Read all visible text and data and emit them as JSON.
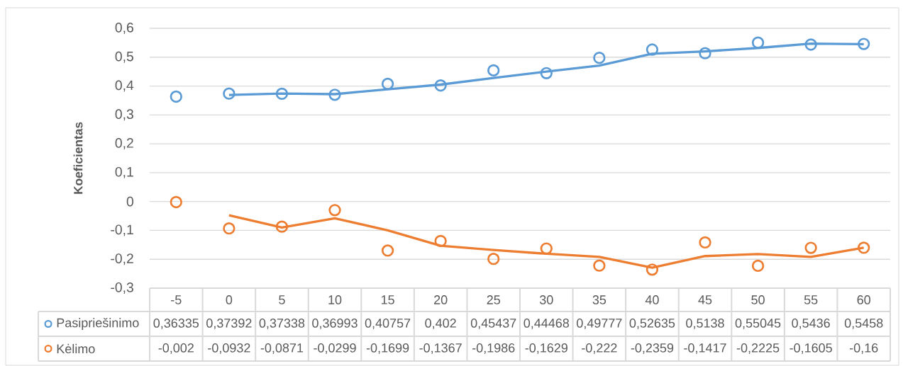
{
  "chart_data": {
    "type": "scatter",
    "ylabel": "Koeficientas",
    "categories": [
      "-5",
      "0",
      "5",
      "10",
      "15",
      "20",
      "25",
      "30",
      "35",
      "40",
      "45",
      "50",
      "55",
      "60"
    ],
    "series": [
      {
        "name": "Pasipriešinimo",
        "color": "#5b9bd5",
        "marker": "circle",
        "values": [
          0.36335,
          0.37392,
          0.37338,
          0.36993,
          0.40757,
          0.402,
          0.45437,
          0.44468,
          0.49777,
          0.52635,
          0.5138,
          0.55045,
          0.5436,
          0.5458
        ],
        "value_labels": [
          "0,36335",
          "0,37392",
          "0,37338",
          "0,36993",
          "0,40757",
          "0,402",
          "0,45437",
          "0,44468",
          "0,49777",
          "0,52635",
          "0,5138",
          "0,55045",
          "0,5436",
          "0,5458"
        ]
      },
      {
        "name": "Kėlimo",
        "color": "#ed7d31",
        "marker": "circle",
        "values": [
          -0.002,
          -0.0932,
          -0.0871,
          -0.0299,
          -0.1699,
          -0.1367,
          -0.1986,
          -0.1629,
          -0.222,
          -0.2359,
          -0.1417,
          -0.2225,
          -0.1605,
          -0.16
        ],
        "value_labels": [
          "-0,002",
          "-0,0932",
          "-0,0871",
          "-0,0299",
          "-0,1699",
          "-0,1367",
          "-0,1986",
          "-0,1629",
          "-0,222",
          "-0,2359",
          "-0,1417",
          "-0,2225",
          "-0,1605",
          "-0,16"
        ]
      },
      {
        "type": "line",
        "color": "#5b9bd5",
        "marker": "none",
        "values": [
          null,
          0.369,
          0.374,
          0.372,
          0.389,
          0.405,
          0.428,
          0.45,
          0.471,
          0.512,
          0.52,
          0.532,
          0.547,
          0.545
        ]
      },
      {
        "type": "line",
        "color": "#ed7d31",
        "marker": "none",
        "values": [
          null,
          -0.048,
          -0.09,
          -0.058,
          -0.1,
          -0.153,
          -0.168,
          -0.181,
          -0.192,
          -0.229,
          -0.189,
          -0.182,
          -0.192,
          -0.16
        ]
      }
    ],
    "ylim": [
      -0.3,
      0.6
    ],
    "yticks": [
      {
        "value": -0.3,
        "label": "-0,3"
      },
      {
        "value": -0.2,
        "label": "-0,2"
      },
      {
        "value": -0.1,
        "label": "-0,1"
      },
      0,
      {
        "value": 0.1,
        "label": "0,1"
      },
      {
        "value": 0.2,
        "label": "0,2"
      },
      {
        "value": 0.3,
        "label": "0,3"
      },
      {
        "value": 0.4,
        "label": "0,4"
      },
      {
        "value": 0.5,
        "label": "0,5"
      },
      {
        "value": 0.6,
        "label": "0,6"
      }
    ],
    "grid": "y",
    "legend": "bottom"
  }
}
